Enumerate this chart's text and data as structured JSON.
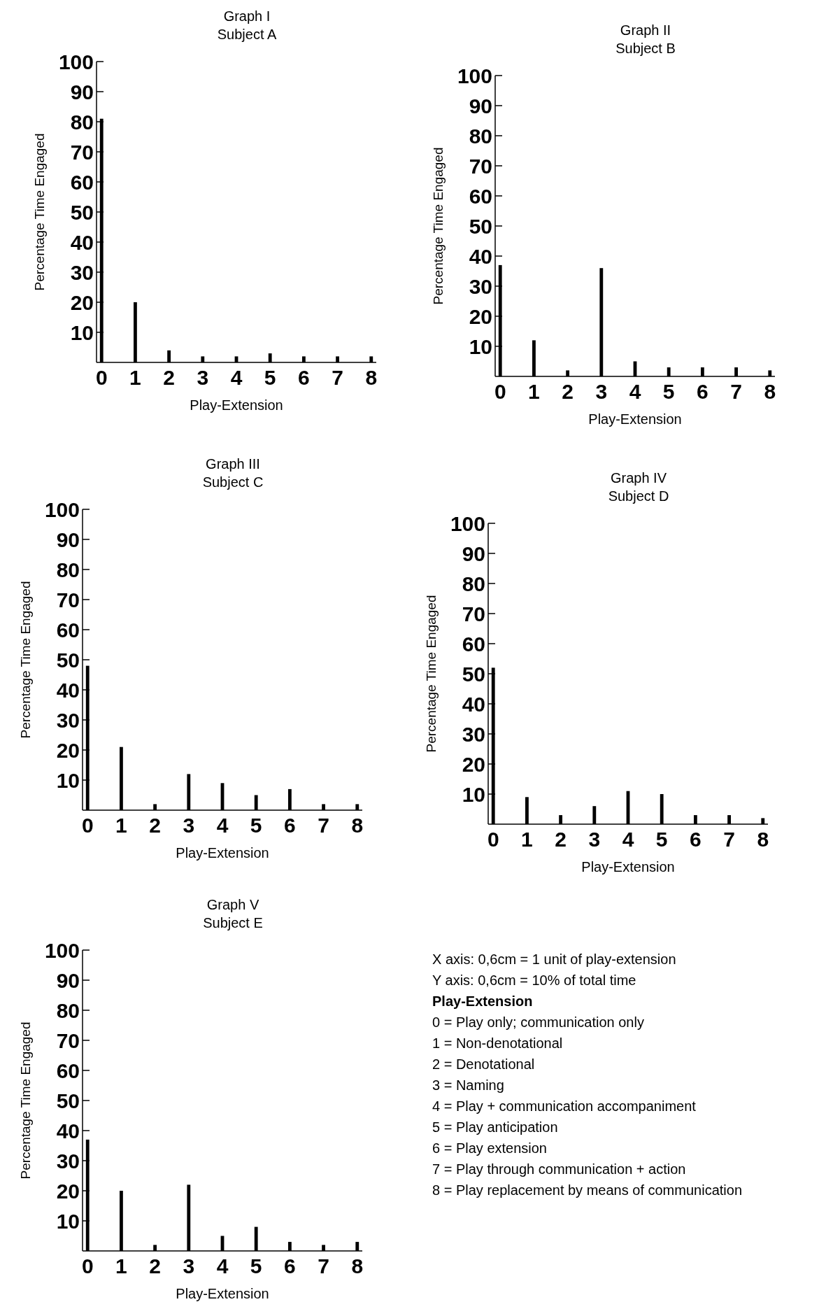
{
  "chart_data": [
    {
      "type": "bar",
      "title": "Graph I",
      "subtitle": "Subject A",
      "xlabel": "Play-Extension",
      "ylabel": "Percentage Time Engaged",
      "categories": [
        "0",
        "1",
        "2",
        "3",
        "4",
        "5",
        "6",
        "7",
        "8"
      ],
      "values": [
        81,
        20,
        4,
        2,
        2,
        3,
        2,
        2,
        2
      ],
      "color": "#000000",
      "ylim": [
        0,
        100
      ],
      "yticks": [
        10,
        20,
        30,
        40,
        50,
        60,
        70,
        80,
        90,
        100
      ],
      "grid": false
    },
    {
      "type": "bar",
      "title": "Graph II",
      "subtitle": "Subject B",
      "xlabel": "Play-Extension",
      "ylabel": "Percentage Time Engaged",
      "categories": [
        "0",
        "1",
        "2",
        "3",
        "4",
        "5",
        "6",
        "7",
        "8"
      ],
      "values": [
        37,
        12,
        2,
        36,
        5,
        3,
        3,
        3,
        2
      ],
      "color": "#000000",
      "ylim": [
        0,
        100
      ],
      "yticks": [
        10,
        20,
        30,
        40,
        50,
        60,
        70,
        80,
        90,
        100
      ],
      "grid": false
    },
    {
      "type": "bar",
      "title": "Graph III",
      "subtitle": "Subject C",
      "xlabel": "Play-Extension",
      "ylabel": "Percentage Time Engaged",
      "categories": [
        "0",
        "1",
        "2",
        "3",
        "4",
        "5",
        "6",
        "7",
        "8"
      ],
      "values": [
        48,
        21,
        2,
        12,
        9,
        5,
        7,
        2,
        2
      ],
      "color": "#000000",
      "ylim": [
        0,
        100
      ],
      "yticks": [
        10,
        20,
        30,
        40,
        50,
        60,
        70,
        80,
        90,
        100
      ],
      "grid": false
    },
    {
      "type": "bar",
      "title": "Graph IV",
      "subtitle": "Subject D",
      "xlabel": "Play-Extension",
      "ylabel": "Percentage Time Engaged",
      "categories": [
        "0",
        "1",
        "2",
        "3",
        "4",
        "5",
        "6",
        "7",
        "8"
      ],
      "values": [
        52,
        9,
        3,
        6,
        11,
        10,
        3,
        3,
        2
      ],
      "color": "#000000",
      "ylim": [
        0,
        100
      ],
      "yticks": [
        10,
        20,
        30,
        40,
        50,
        60,
        70,
        80,
        90,
        100
      ],
      "grid": false
    },
    {
      "type": "bar",
      "title": "Graph V",
      "subtitle": "Subject E",
      "xlabel": "Play-Extension",
      "ylabel": "Percentage Time Engaged",
      "categories": [
        "0",
        "1",
        "2",
        "3",
        "4",
        "5",
        "6",
        "7",
        "8"
      ],
      "values": [
        37,
        20,
        2,
        22,
        5,
        8,
        3,
        2,
        3
      ],
      "color": "#000000",
      "ylim": [
        0,
        100
      ],
      "yticks": [
        10,
        20,
        30,
        40,
        50,
        60,
        70,
        80,
        90,
        100
      ],
      "grid": false
    },
    {
      "type": "other",
      "title": "Play-Extension",
      "annotations": [
        "X axis: 0,6cm = 1 unit of play-extension",
        "Y axis: 0,6cm = 10% of total time",
        "0 = Play only; communication only",
        "1 = Non-denotational",
        "2 = Denotational",
        "3 = Naming",
        "4 = Play + communication accompaniment",
        "5 = Play anticipation",
        "6 = Play extension",
        "7 = Play through communication + action",
        "8 = Play replacement by means of communication"
      ]
    }
  ]
}
